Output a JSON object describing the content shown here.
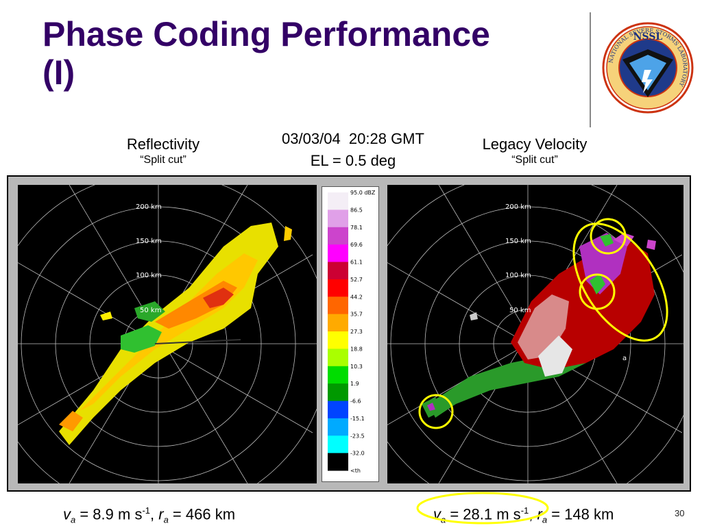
{
  "slide": {
    "title_line1": "Phase Coding Performance",
    "title_line2": "(I)",
    "slide_number": "30"
  },
  "logo": {
    "top_text": "NSSL",
    "ring_text": "NATIONAL SEVERE STORMS LABORATORY"
  },
  "captions": {
    "left_title": "Reflectivity",
    "left_sub": "“Split cut”",
    "center_datetime": "03/03/04  20:28 GMT",
    "center_elevation": "EL = 0.5 deg",
    "right_title": "Legacy Velocity",
    "right_sub": "“Split cut”"
  },
  "radar": {
    "range_labels": [
      "200 km",
      "150 km",
      "100 km",
      "50 km"
    ],
    "right_marker": "a"
  },
  "colorbar": {
    "labels": [
      "95.0 dBZ",
      "86.5",
      "78.1",
      "69.6",
      "61.1",
      "52.7",
      "44.2",
      "35.7",
      "27.3",
      "18.8",
      "10.3",
      "1.9",
      "-6.6",
      "-15.1",
      "-23.5",
      "-32.0",
      "<th"
    ],
    "colors": [
      "#f4eef6",
      "#e0a0e8",
      "#cc44cc",
      "#ff00ff",
      "#cc0033",
      "#ff0000",
      "#ff6600",
      "#ffaa00",
      "#ffff00",
      "#aaff00",
      "#00dd00",
      "#009900",
      "#0044ff",
      "#00aaff",
      "#00ffff",
      "#000000"
    ]
  },
  "bottom": {
    "left": {
      "v": "v",
      "v_sub": "a",
      "v_eq": " = 8.9 m s",
      "v_sup": "-1",
      "sep": ", ",
      "r": "r",
      "r_sub": "a",
      "r_eq": " = 466 km"
    },
    "right": {
      "v": "v",
      "v_sub": "a",
      "v_eq": " = 28.1 m s",
      "v_sup": "-1",
      "sep": ", ",
      "r": "r",
      "r_sub": "a",
      "r_eq": " = 148 km"
    }
  }
}
